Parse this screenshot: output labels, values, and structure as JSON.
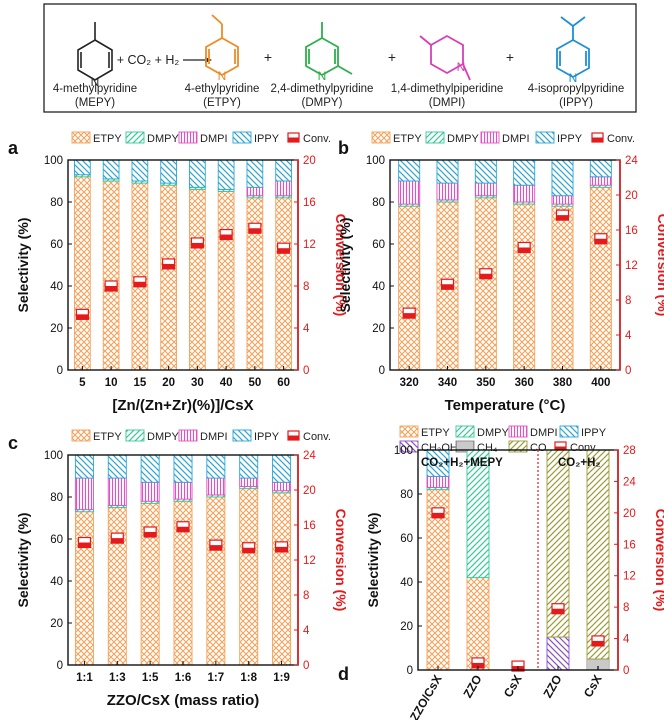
{
  "colors": {
    "ETPY": "#f5a25a",
    "DMPY": "#38c79a",
    "DMPI": "#e34fc4",
    "IPPY": "#2aa6d8",
    "CH3OH": "#8b4fc9",
    "CH4": "#888888",
    "CO": "#9b9b3a",
    "conv": "#e41a1c",
    "ETPY_mol": "#f08a24",
    "DMPY_mol": "#2db04b",
    "IPPY_mol": "#1f8fd6"
  },
  "scheme": {
    "reactant": "4-methylpyridine",
    "reactant_abbr": "(MEPY)",
    "reagents": "+ CO₂ + H₂",
    "p1": "4-ethylpyridine",
    "p1_abbr": "(ETPY)",
    "p2": "2,4-dimethylpyridine",
    "p2_abbr": "(DMPY)",
    "p3": "1,4-dimethylpiperidine",
    "p3_abbr": "(DMPI)",
    "p4": "4-isopropylpyridine",
    "p4_abbr": "(IPPY)",
    "plus": "+",
    "atom_N": "N"
  },
  "chart_data": [
    {
      "panel": "a",
      "type": "bar",
      "stacked": true,
      "xlabel": "[Zn/(Zn+Zr)(%)]/CsX",
      "ylabel": "Selectivity (%)",
      "y2label": "Conversion (%)",
      "ylim": [
        0,
        100
      ],
      "y2lim": [
        0,
        20
      ],
      "yticks": [
        "0",
        "20",
        "40",
        "60",
        "80",
        "100"
      ],
      "y2ticks": [
        "0",
        "4",
        "8",
        "12",
        "16",
        "20"
      ],
      "categories": [
        "5",
        "10",
        "15",
        "20",
        "30",
        "40",
        "50",
        "60"
      ],
      "legend": [
        "ETPY",
        "DMPY",
        "DMPI",
        "IPPY",
        "Conv."
      ],
      "series": [
        {
          "name": "ETPY",
          "values": [
            92,
            90,
            89,
            88,
            86,
            85,
            82,
            82
          ]
        },
        {
          "name": "DMPY",
          "values": [
            1,
            1,
            1,
            1,
            1,
            1,
            1,
            1
          ]
        },
        {
          "name": "DMPI",
          "values": [
            0,
            0,
            0,
            0,
            0,
            0,
            4,
            7
          ]
        },
        {
          "name": "IPPY",
          "values": [
            7,
            9,
            10,
            11,
            13,
            14,
            13,
            10
          ]
        }
      ],
      "conversion": [
        5.3,
        8.0,
        8.4,
        10.1,
        12.1,
        12.9,
        13.5,
        11.6
      ]
    },
    {
      "panel": "b",
      "type": "bar",
      "stacked": true,
      "xlabel": "Temperature (°C)",
      "ylabel": "Selectivity (%)",
      "y2label": "Conversion (%)",
      "ylim": [
        0,
        100
      ],
      "y2lim": [
        0,
        24
      ],
      "yticks": [
        "0",
        "20",
        "40",
        "60",
        "80",
        "100"
      ],
      "y2ticks": [
        "0",
        "4",
        "8",
        "12",
        "16",
        "20",
        "24"
      ],
      "categories": [
        "320",
        "340",
        "350",
        "360",
        "380",
        "400"
      ],
      "legend": [
        "ETPY",
        "DMPY",
        "DMPI",
        "IPPY",
        "Conv."
      ],
      "series": [
        {
          "name": "ETPY",
          "values": [
            78,
            80,
            82,
            79,
            78,
            87
          ]
        },
        {
          "name": "DMPY",
          "values": [
            1,
            1,
            1,
            1,
            1,
            1
          ]
        },
        {
          "name": "DMPI",
          "values": [
            11,
            8,
            6,
            8,
            4,
            4
          ]
        },
        {
          "name": "IPPY",
          "values": [
            10,
            11,
            11,
            12,
            17,
            8
          ]
        }
      ],
      "conversion": [
        6.5,
        9.8,
        11.0,
        14.0,
        17.7,
        15.0
      ]
    },
    {
      "panel": "c",
      "type": "bar",
      "stacked": true,
      "xlabel": "ZZO/CsX (mass ratio)",
      "ylabel": "Selectivity (%)",
      "y2label": "Conversion (%)",
      "ylim": [
        0,
        100
      ],
      "y2lim": [
        0,
        24
      ],
      "yticks": [
        "0",
        "20",
        "40",
        "60",
        "80",
        "100"
      ],
      "y2ticks": [
        "0",
        "4",
        "8",
        "12",
        "16",
        "20",
        "24"
      ],
      "categories": [
        "1:1",
        "1:3",
        "1:5",
        "1:6",
        "1:7",
        "1:8",
        "1:9"
      ],
      "legend": [
        "ETPY",
        "DMPY",
        "DMPI",
        "IPPY",
        "Conv."
      ],
      "series": [
        {
          "name": "ETPY",
          "values": [
            73,
            75,
            77,
            78,
            80,
            84,
            82
          ]
        },
        {
          "name": "DMPY",
          "values": [
            1,
            1,
            1,
            1,
            1,
            1,
            1
          ]
        },
        {
          "name": "DMPI",
          "values": [
            15,
            13,
            9,
            8,
            8,
            4,
            4
          ]
        },
        {
          "name": "IPPY",
          "values": [
            11,
            11,
            13,
            13,
            11,
            11,
            13
          ]
        }
      ],
      "conversion": [
        14.0,
        14.5,
        15.2,
        15.8,
        13.7,
        13.4,
        13.5
      ]
    },
    {
      "panel": "d",
      "type": "bar",
      "stacked": true,
      "ylabel": "Selectivity (%)",
      "y2label": "Conversion (%)",
      "ylim": [
        0,
        100
      ],
      "y2lim": [
        0,
        28
      ],
      "yticks": [
        "0",
        "20",
        "40",
        "60",
        "80",
        "100"
      ],
      "y2ticks": [
        "0",
        "4",
        "8",
        "12",
        "16",
        "20",
        "24",
        "28"
      ],
      "categories": [
        "ZZO/CsX",
        "ZZO",
        "CsX",
        "ZZO",
        "CsX"
      ],
      "group_labels": [
        "CO₂+H₂+MEPY",
        "CO₂+H₂"
      ],
      "legend": [
        "ETPY",
        "DMPY",
        "DMPI",
        "IPPY",
        "CH3OH",
        "CH4",
        "CO",
        "Conv."
      ],
      "series": [
        {
          "name": "ETPY",
          "values": [
            82,
            42,
            0,
            0,
            0
          ]
        },
        {
          "name": "DMPY",
          "values": [
            1,
            58,
            0,
            0,
            0
          ]
        },
        {
          "name": "DMPI",
          "values": [
            5,
            0,
            0,
            0,
            0
          ]
        },
        {
          "name": "IPPY",
          "values": [
            12,
            0,
            0,
            0,
            0
          ]
        },
        {
          "name": "CH3OH",
          "values": [
            0,
            0,
            0,
            15,
            0
          ]
        },
        {
          "name": "CH4",
          "values": [
            0,
            0,
            0,
            0,
            5
          ]
        },
        {
          "name": "CO",
          "values": [
            0,
            0,
            0,
            85,
            95
          ]
        }
      ],
      "conversion": [
        20.0,
        0.9,
        0.5,
        7.8,
        3.7
      ]
    }
  ]
}
